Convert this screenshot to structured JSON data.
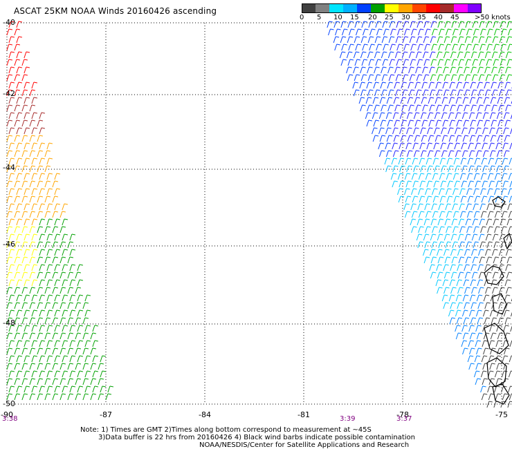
{
  "title": "ASCAT 25KM NOAA Winds 20160426 ascending",
  "colorbar": {
    "colors": [
      "#404040",
      "#808080",
      "#00e5ff",
      "#00b0ff",
      "#0040ff",
      "#00a000",
      "#ffff00",
      "#ffa500",
      "#ff4500",
      "#ff0000",
      "#a52a2a",
      "#ff00ff",
      "#8000ff"
    ],
    "labels": [
      "0",
      "5",
      "10",
      "15",
      "20",
      "25",
      "30",
      "35",
      "40",
      "45",
      ">50 knots"
    ]
  },
  "map": {
    "lon_ticks": [
      "-90",
      "-87",
      "-84",
      "-81",
      "-78",
      "-75"
    ],
    "lat_ticks": [
      "-40",
      "-42",
      "-44",
      "-46",
      "-48",
      "-50"
    ],
    "times": [
      "3:38",
      "3:39",
      "3:37"
    ]
  },
  "notes": [
    "Note: 1) Times are GMT 2)Times along bottom correspond to measurement at ~45S",
    "3)Data buffer is 22 hrs from 20160426 4) Black wind barbs indicate possible contamination",
    "NOAA/NESDIS/Center for Satellite Applications and Research"
  ]
}
